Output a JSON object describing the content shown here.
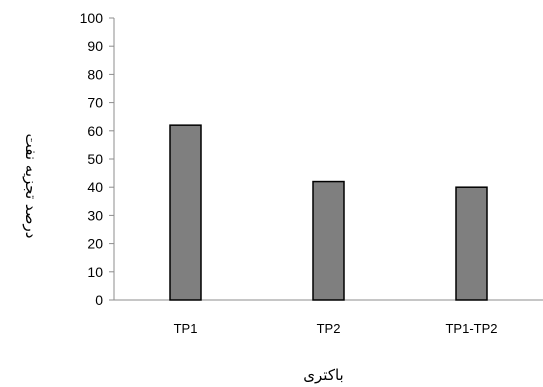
{
  "chart_data": {
    "type": "bar",
    "title": "",
    "categories": [
      "TP1",
      "TP2",
      "TP1-TP2"
    ],
    "series": [
      {
        "values": [
          62,
          42,
          40
        ]
      }
    ],
    "xlabel": "باکتری",
    "ylabel": "درصد تجزیه نفت",
    "ylim": [
      0,
      100
    ],
    "yticks": [
      0,
      10,
      20,
      30,
      40,
      50,
      60,
      70,
      80,
      90,
      100
    ],
    "grid": false,
    "legend": "none",
    "colors": {
      "bar_fill": "#7f7f7f",
      "bar_stroke": "#000000",
      "axis": "#8c8c8c"
    }
  }
}
